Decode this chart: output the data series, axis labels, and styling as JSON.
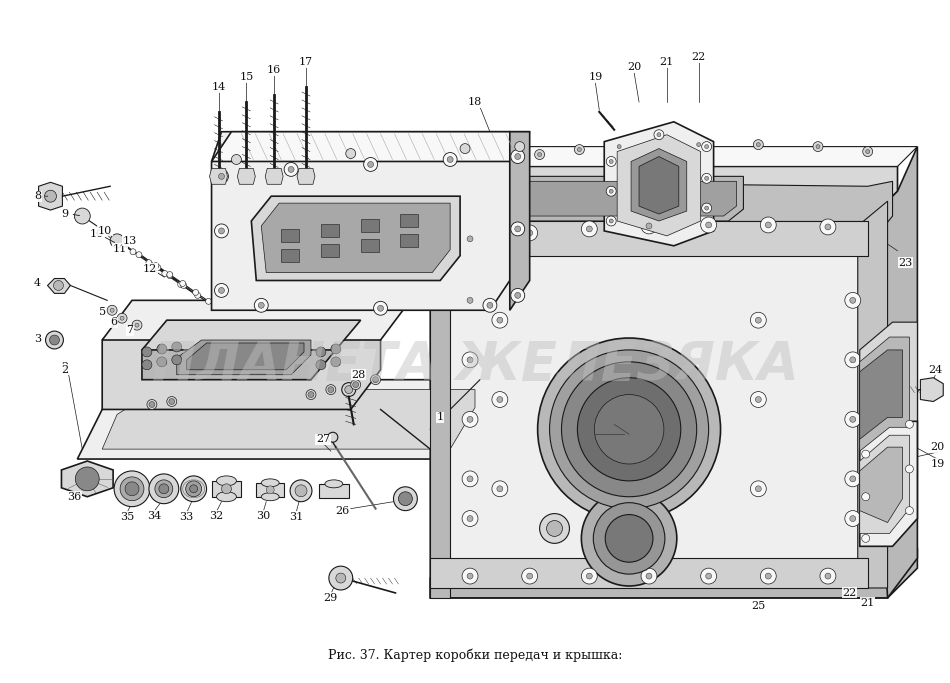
{
  "title": "Рис. 37. Картер коробки передач и крышка:",
  "title_fontsize": 9,
  "bg_color": "#ffffff",
  "watermark_text": "ПЛАНЕТА ЖЕЛЕЗЯКА",
  "watermark_color": "#c0c0c0",
  "watermark_alpha": 0.45,
  "watermark_fontsize": 38,
  "fig_width": 9.5,
  "fig_height": 6.83,
  "dpi": 100,
  "label_fontsize": 8,
  "line_color": "#1a1a1a",
  "fill_light": "#efefef",
  "fill_mid": "#d8d8d8",
  "fill_dark": "#b8b8b8",
  "fill_vdark": "#909090",
  "fill_white": "#f8f8f8"
}
